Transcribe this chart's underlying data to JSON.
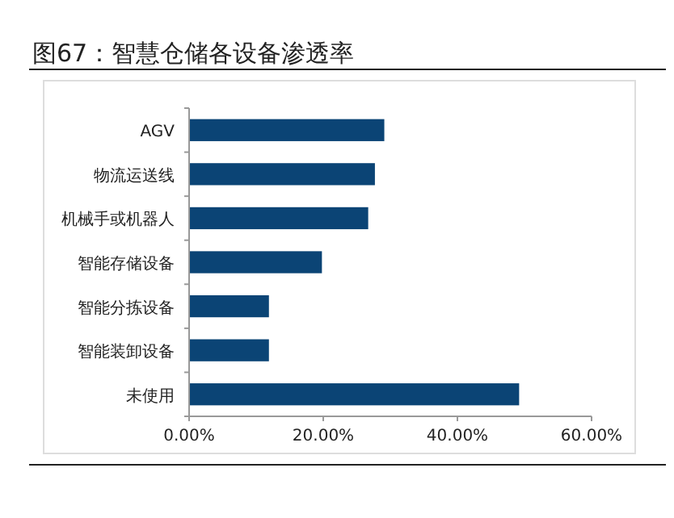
{
  "chart_data": {
    "type": "bar",
    "orientation": "horizontal",
    "title": "图67：智慧仓储各设备渗透率",
    "categories": [
      "AGV",
      "物流运送线",
      "机械手或机器人",
      "智能存储设备",
      "智能分拣设备",
      "智能装卸设备",
      "未使用"
    ],
    "values": [
      29.1,
      27.7,
      26.7,
      19.8,
      11.9,
      11.9,
      49.2
    ],
    "color": "#0b4475",
    "xlim": [
      0,
      60
    ],
    "xticks": [
      {
        "value": 0,
        "label": "0.00%"
      },
      {
        "value": 20,
        "label": "20.00%"
      },
      {
        "value": 40,
        "label": "40.00%"
      },
      {
        "value": 60,
        "label": "60.00%"
      }
    ],
    "grid": false
  }
}
